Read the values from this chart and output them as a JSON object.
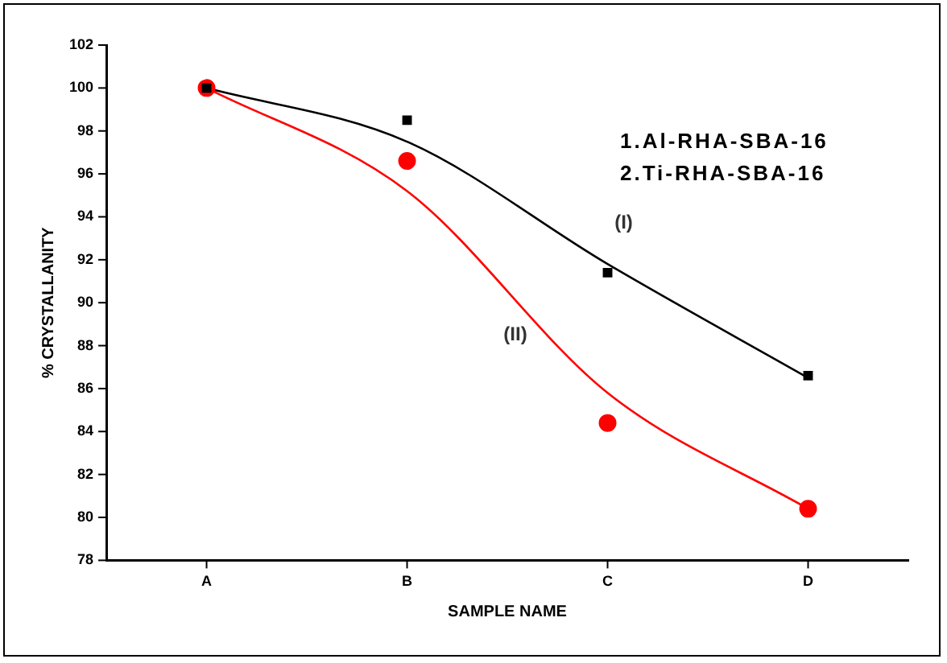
{
  "chart_data": {
    "type": "scatter",
    "xlabel": "SAMPLE NAME",
    "ylabel": "% CRYSTALLANITY",
    "categories": [
      "A",
      "B",
      "C",
      "D"
    ],
    "series": [
      {
        "color": "#000000",
        "marker": "square",
        "values": [
          100,
          98.5,
          91.4,
          86.6
        ]
      },
      {
        "color": "#ff0000",
        "marker": "circle",
        "values": [
          100,
          96.6,
          84.4,
          80.4
        ]
      },
      {
        "type": "line",
        "name": "(I)",
        "color": "#000000",
        "marker": "none",
        "values": [
          100,
          97.5,
          91.8,
          86.5
        ]
      },
      {
        "type": "line",
        "name": "(II)",
        "color": "#ff0000",
        "marker": "none",
        "values": [
          100,
          95.2,
          85.8,
          80.4
        ]
      }
    ],
    "ylim": [
      78,
      102
    ],
    "yticks": [
      78,
      80,
      82,
      84,
      86,
      88,
      90,
      92,
      94,
      96,
      98,
      100,
      102
    ],
    "grid": false,
    "legend": false,
    "annotations": [
      "1.Al-RHA-SBA-16",
      "2.Ti-RHA-SBA-16"
    ]
  }
}
